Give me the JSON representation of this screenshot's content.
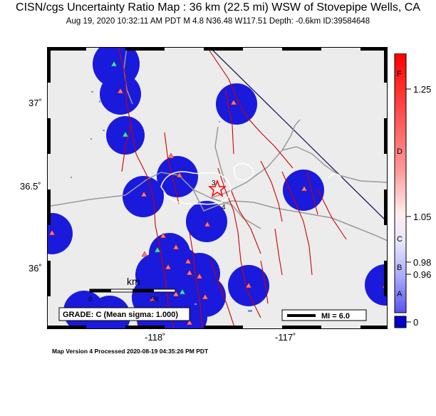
{
  "header": {
    "title": "CISN/cgs Uncertainty Ratio Map : 36 km (22.5 mi) WSW of Stovepipe Wells, CA",
    "subtitle": "Aug 19, 2020 10:32:11 AM PDT   M 4.8   N36.48 W117.51   Depth: -0.6km   ID:39584648"
  },
  "axes": {
    "lat_labels": [
      "37˚",
      "36.5˚",
      "36˚"
    ],
    "lon_labels": [
      "-118˚",
      "-117˚"
    ]
  },
  "map": {
    "scale_bar": {
      "unit": "km",
      "ticks": [
        "0",
        "50"
      ]
    },
    "grade_text": "GRADE: C (Mean sigma: 1.000)",
    "mmi_legend": "MI = 6.0",
    "station_labels": [
      "3",
      "4"
    ],
    "colors": {
      "land": "#ececec",
      "uncertainty": "#1a1adc",
      "fault": "#cc0000",
      "road": "#999999",
      "boundary": "#1a1a5a",
      "station_red": "#ff7777",
      "station_green": "#44ddaa",
      "epicenter": "#ff0000"
    }
  },
  "colorbar": {
    "tick_labels": [
      "1.25",
      "1.05",
      "0.98",
      "0.96",
      "0"
    ],
    "grade_letters": [
      "F",
      "D",
      "C",
      "B",
      "A"
    ]
  },
  "footer": {
    "text": "Map Version 4 Processed 2020-08-19 04:35:26 PM PDT"
  }
}
